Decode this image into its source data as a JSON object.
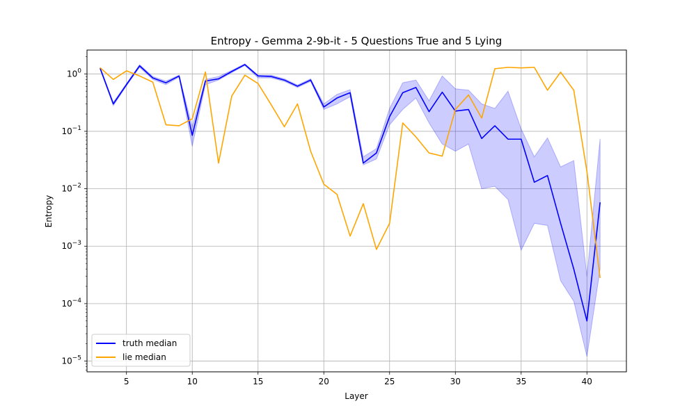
{
  "chart_data": {
    "type": "line",
    "title": "Entropy - Gemma 2-9b-it - 5 Questions True and 5 Lying",
    "xlabel": "Layer",
    "ylabel": "Entropy",
    "yscale": "log",
    "xlim": [
      2,
      43
    ],
    "ylim": [
      6.5e-06,
      2.6
    ],
    "xticks": [
      5,
      10,
      15,
      20,
      25,
      30,
      35,
      40
    ],
    "yticks": [
      1e-05,
      0.0001,
      0.001,
      0.01,
      0.1,
      1
    ],
    "grid": true,
    "legend_position": "lower-left",
    "x": [
      3,
      4,
      5,
      6,
      7,
      8,
      9,
      10,
      11,
      12,
      13,
      14,
      15,
      16,
      17,
      18,
      19,
      20,
      21,
      22,
      23,
      24,
      25,
      26,
      27,
      28,
      29,
      30,
      31,
      32,
      33,
      34,
      35,
      36,
      37,
      38,
      39,
      40,
      41
    ],
    "series": [
      {
        "name": "truth median",
        "color": "#0000ff",
        "values": [
          1.25,
          0.3,
          0.65,
          1.38,
          0.85,
          0.7,
          0.92,
          0.085,
          0.75,
          0.82,
          1.1,
          1.45,
          0.92,
          0.9,
          0.78,
          0.61,
          0.78,
          0.265,
          0.38,
          0.47,
          0.028,
          0.042,
          0.18,
          0.47,
          0.58,
          0.22,
          0.48,
          0.225,
          0.24,
          0.075,
          0.125,
          0.073,
          0.073,
          0.013,
          0.017,
          0.0025,
          0.0004,
          5e-05,
          0.0058
        ],
        "band_lower": [
          1.2,
          0.28,
          0.62,
          1.3,
          0.8,
          0.65,
          0.88,
          0.055,
          0.65,
          0.78,
          1.05,
          1.4,
          0.85,
          0.85,
          0.74,
          0.58,
          0.74,
          0.24,
          0.3,
          0.4,
          0.026,
          0.033,
          0.13,
          0.24,
          0.38,
          0.14,
          0.06,
          0.045,
          0.06,
          0.01,
          0.011,
          0.0065,
          0.00085,
          0.0025,
          0.0023,
          0.00025,
          0.00011,
          1.2e-05,
          0.0004
        ],
        "band_upper": [
          1.3,
          0.32,
          0.68,
          1.45,
          0.9,
          0.75,
          0.95,
          0.12,
          0.8,
          0.9,
          1.15,
          1.5,
          0.95,
          0.95,
          0.82,
          0.64,
          0.82,
          0.3,
          0.44,
          0.53,
          0.036,
          0.05,
          0.25,
          0.7,
          0.78,
          0.34,
          0.92,
          0.55,
          0.52,
          0.3,
          0.25,
          0.5,
          0.11,
          0.036,
          0.077,
          0.024,
          0.031,
          0.0003,
          0.074
        ]
      },
      {
        "name": "lie median",
        "color": "#ffa500",
        "values": [
          1.28,
          0.8,
          1.13,
          0.92,
          0.72,
          0.13,
          0.125,
          0.165,
          1.08,
          0.028,
          0.41,
          0.95,
          0.68,
          0.29,
          0.12,
          0.3,
          0.045,
          0.012,
          0.008,
          0.0015,
          0.0055,
          0.00088,
          0.0025,
          0.14,
          0.08,
          0.042,
          0.037,
          0.24,
          0.43,
          0.17,
          1.23,
          1.3,
          1.27,
          1.3,
          0.52,
          1.07,
          0.52,
          0.02,
          0.00028
        ]
      }
    ]
  }
}
